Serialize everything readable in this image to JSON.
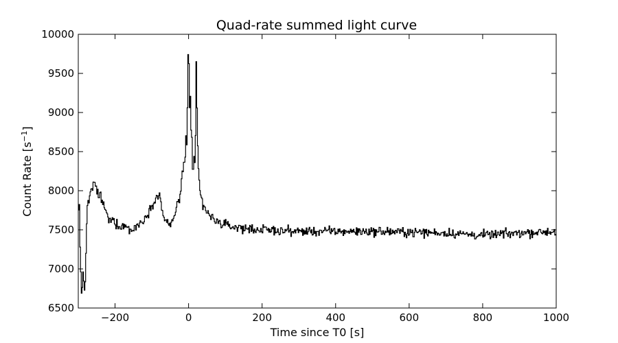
{
  "chart_data": {
    "type": "line",
    "title": "Quad-rate summed light curve",
    "xlabel": "Time since T0 [s]",
    "ylabel_main": "Count Rate [s",
    "ylabel_sup": "−1",
    "ylabel_end": "]",
    "xlim": [
      -300,
      1000
    ],
    "ylim": [
      6500,
      10000
    ],
    "grid": false,
    "legend": "none",
    "step": "post",
    "line_color": "#000000",
    "xticks": [
      -200,
      0,
      200,
      400,
      600,
      800,
      1000
    ],
    "xtick_labels": [
      "−200",
      "0",
      "200",
      "400",
      "600",
      "800",
      "1000"
    ],
    "yticks": [
      6500,
      7000,
      7500,
      8000,
      8500,
      9000,
      9500,
      10000
    ],
    "ytick_labels": [
      "6500",
      "7000",
      "7500",
      "8000",
      "8500",
      "9000",
      "9500",
      "10000"
    ],
    "anchors": {
      "x": [
        -300,
        -297,
        -295,
        -292,
        -290,
        -287,
        -285,
        -282,
        -280,
        -277,
        -275,
        -270,
        -265,
        -260,
        -255,
        -250,
        -245,
        -240,
        -235,
        -230,
        -225,
        -220,
        -215,
        -210,
        -200,
        -190,
        -180,
        -170,
        -160,
        -150,
        -140,
        -130,
        -120,
        -110,
        -100,
        -95,
        -90,
        -85,
        -80,
        -75,
        -70,
        -65,
        -60,
        -55,
        -50,
        -45,
        -40,
        -35,
        -30,
        -25,
        -20,
        -15,
        -10,
        -7,
        -5,
        -3,
        -1,
        0,
        1,
        2,
        3,
        5,
        7,
        9,
        11,
        13,
        15,
        17,
        19,
        20,
        21,
        22,
        23,
        24,
        25,
        26,
        28,
        30,
        35,
        40,
        45,
        50,
        55,
        60,
        65,
        70,
        80,
        90,
        100,
        120,
        150,
        200,
        300,
        400,
        500,
        600,
        700,
        800,
        900,
        1000
      ],
      "y": [
        7700,
        7800,
        7300,
        6800,
        6700,
        6900,
        6800,
        6700,
        7000,
        7600,
        7800,
        7900,
        8000,
        8050,
        8100,
        8000,
        7950,
        7950,
        7850,
        7800,
        7750,
        7650,
        7600,
        7650,
        7600,
        7550,
        7550,
        7550,
        7500,
        7500,
        7560,
        7580,
        7650,
        7720,
        7800,
        7880,
        7900,
        7920,
        7950,
        7850,
        7700,
        7650,
        7600,
        7560,
        7550,
        7600,
        7650,
        7750,
        7850,
        7900,
        8050,
        8250,
        8400,
        8700,
        8600,
        9050,
        9750,
        9850,
        9550,
        9400,
        9000,
        9150,
        8700,
        8600,
        8300,
        8200,
        8400,
        8350,
        8700,
        9300,
        9600,
        9550,
        9000,
        8800,
        8600,
        8400,
        8200,
        8000,
        7900,
        7800,
        7780,
        7720,
        7700,
        7650,
        7650,
        7630,
        7600,
        7580,
        7560,
        7540,
        7520,
        7500,
        7480,
        7480,
        7480,
        7470,
        7460,
        7430,
        7460,
        7480
      ]
    },
    "noise_amplitude": 70,
    "bin_width": 2
  }
}
